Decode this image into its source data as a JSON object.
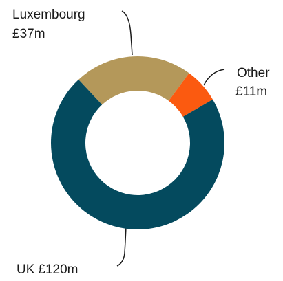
{
  "chart_data": {
    "type": "donut",
    "categories": [
      "Luxembourg",
      "Other",
      "UK"
    ],
    "values": [
      37,
      11,
      120
    ],
    "value_labels": [
      "£37m",
      "£11m",
      "£120m"
    ],
    "colors": [
      "#b4985a",
      "#fb5a10",
      "#044a5e"
    ]
  }
}
